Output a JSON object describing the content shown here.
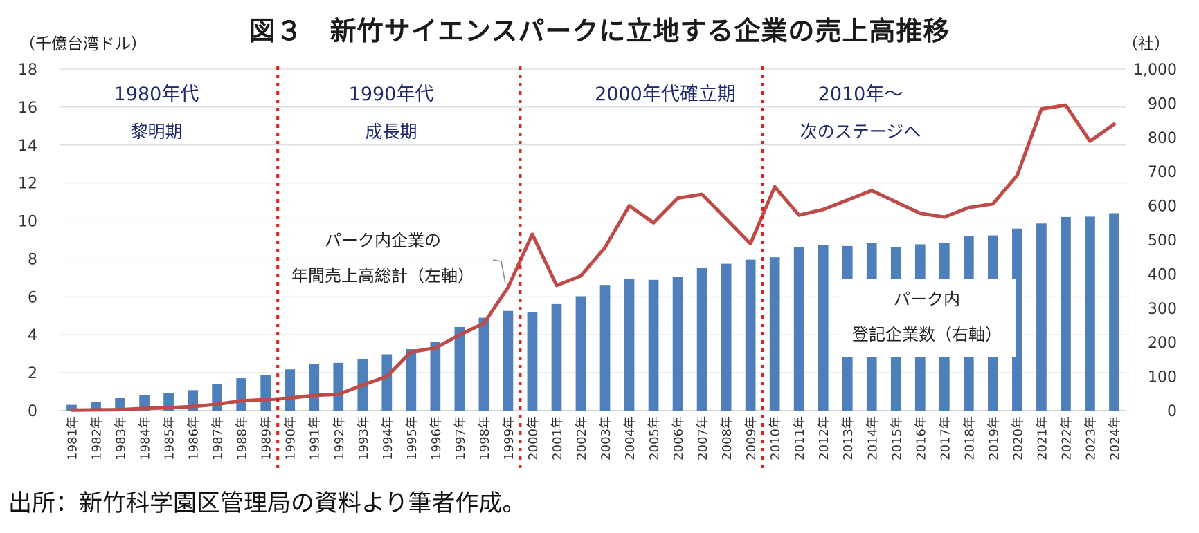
{
  "title": "図３　新竹サイエンスパークに立地する企業の売上高推移",
  "source": "出所：新竹科学園区管理局の資料より筆者作成。",
  "colors": {
    "bars": "#4f7fba",
    "line": "#be4b48",
    "divider": "#e0201a",
    "eraText": "#1f2a6b",
    "grid": "#d9d9d9"
  },
  "chart_data": {
    "type": "bar+line",
    "categories": [
      "1981年",
      "1982年",
      "1983年",
      "1984年",
      "1985年",
      "1986年",
      "1987年",
      "1988年",
      "1989年",
      "1990年",
      "1991年",
      "1992年",
      "1993年",
      "1994年",
      "1995年",
      "1996年",
      "1997年",
      "1998年",
      "1999年",
      "2000年",
      "2001年",
      "2002年",
      "2003年",
      "2004年",
      "2005年",
      "2006年",
      "2007年",
      "2008年",
      "2009年",
      "2010年",
      "2011年",
      "2012年",
      "2013年",
      "2014年",
      "2015年",
      "2016年",
      "2017年",
      "2018年",
      "2019年",
      "2020年",
      "2021年",
      "2022年",
      "2023年",
      "2024年"
    ],
    "series": [
      {
        "name": "パーク内登記企業数（右軸）",
        "type": "bar",
        "axis": "right",
        "values": [
          17,
          26,
          37,
          45,
          51,
          60,
          77,
          95,
          105,
          121,
          137,
          140,
          150,
          165,
          180,
          202,
          245,
          272,
          292,
          289,
          312,
          335,
          368,
          385,
          383,
          392,
          418,
          430,
          442,
          449,
          478,
          485,
          482,
          490,
          478,
          487,
          492,
          512,
          513,
          533,
          548,
          567,
          568,
          578
        ]
      },
      {
        "name": "パーク内企業の年間売上高総計（左軸）",
        "type": "line",
        "axis": "left",
        "values": [
          0.03,
          0.04,
          0.05,
          0.12,
          0.15,
          0.22,
          0.33,
          0.52,
          0.58,
          0.66,
          0.81,
          0.86,
          1.35,
          1.8,
          3.1,
          3.3,
          4.0,
          4.6,
          6.5,
          9.3,
          6.6,
          7.1,
          8.6,
          10.8,
          9.9,
          11.2,
          11.4,
          10.1,
          8.8,
          11.8,
          10.3,
          10.6,
          11.1,
          11.6,
          11.0,
          10.4,
          10.2,
          10.7,
          10.9,
          12.4,
          15.9,
          16.1,
          14.2,
          15.1
        ]
      }
    ],
    "yleft": {
      "label": "（千億台湾ドル）",
      "range": [
        0,
        18
      ],
      "ticks": [
        "0",
        "2",
        "4",
        "6",
        "8",
        "10",
        "12",
        "14",
        "16",
        "18"
      ]
    },
    "yright": {
      "label": "（社）",
      "range": [
        0,
        1000
      ],
      "ticks": [
        "0",
        "100",
        "200",
        "300",
        "400",
        "500",
        "600",
        "700",
        "800",
        "900",
        "1,000"
      ]
    },
    "grid": true,
    "eras": [
      {
        "label": "1980年代",
        "sub": "黎明期"
      },
      {
        "label": "1990年代",
        "sub": "成長期"
      },
      {
        "label": "2000年代確立期",
        "sub": ""
      },
      {
        "label": "2010年～",
        "sub": "次のステージへ"
      }
    ],
    "dividers_after": [
      "1989年",
      "1999年",
      "2009年"
    ],
    "annotations": {
      "line_callout": [
        "パーク内企業の",
        "年間売上高総計（左軸）"
      ],
      "bar_callout": [
        "パーク内",
        "登記企業数（右軸）"
      ]
    }
  }
}
